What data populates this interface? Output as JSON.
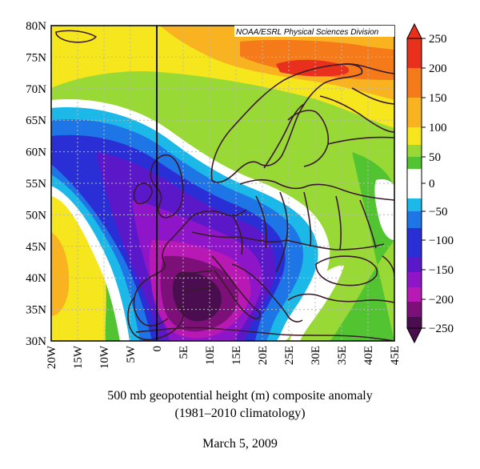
{
  "source_label": "NOAA/ESRL Physical Sciences Division",
  "lat_ticks": [
    "80N",
    "75N",
    "70N",
    "65N",
    "60N",
    "55N",
    "50N",
    "45N",
    "40N",
    "35N",
    "30N"
  ],
  "lon_ticks": [
    "20W",
    "15W",
    "10W",
    "5W",
    "0",
    "5E",
    "10E",
    "15E",
    "20E",
    "25E",
    "30E",
    "35E",
    "40E",
    "45E"
  ],
  "colorbar": {
    "labels": [
      "250",
      "200",
      "150",
      "100",
      "50",
      "0",
      "−50",
      "−100",
      "−150",
      "−200",
      "−250"
    ],
    "colors": {
      "c250": "#e8301c",
      "c200": "#f57a1a",
      "c150": "#f9b321",
      "c100": "#f6e61e",
      "c50": "#99d936",
      "c25": "#52c432",
      "c0": "#ffffff",
      "cm25": "#1bb8e8",
      "cm50": "#1e76e6",
      "cm100": "#2a2fd5",
      "cm125": "#5b18c8",
      "cm150": "#8f15c8",
      "cm175": "#b818b4",
      "cm200": "#7c1078",
      "cm250": "#4a0e50"
    }
  },
  "caption": {
    "line1": "500 mb geopotential height (m) composite anomaly",
    "line2": "(1981–2010 climatology)",
    "date": "March 5, 2009"
  }
}
